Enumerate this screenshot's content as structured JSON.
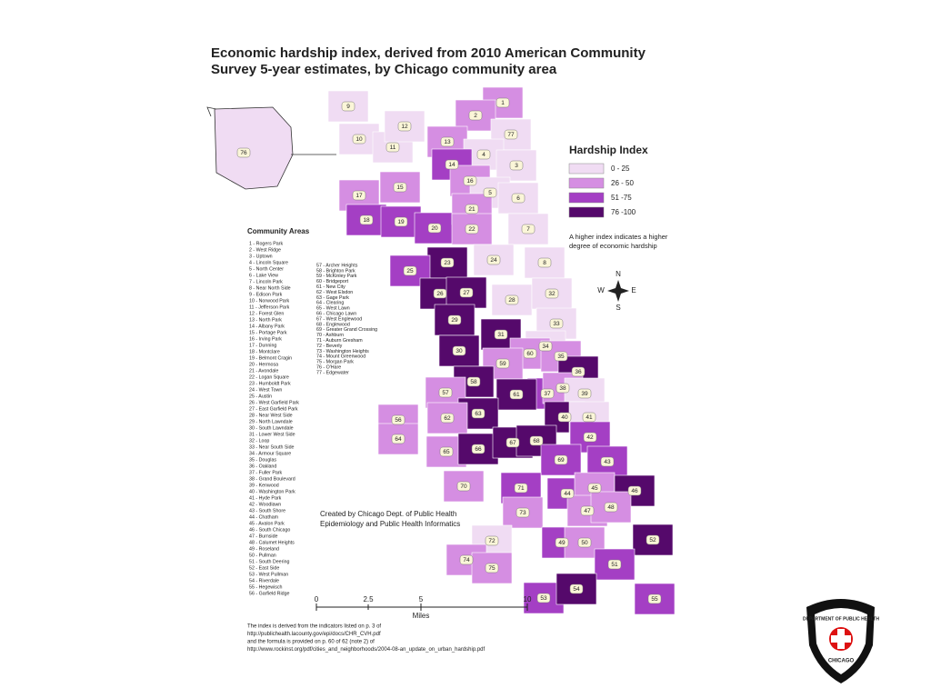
{
  "title": [
    "Economic hardship index, derived from 2010 American Community",
    "Survey 5-year estimates, by Chicago community area"
  ],
  "legend": {
    "title": "Hardship Index",
    "items": [
      {
        "label": "0 - 25",
        "color": "#f0dcf3"
      },
      {
        "label": "26 - 50",
        "color": "#d58ee2"
      },
      {
        "label": "51 -75",
        "color": "#a43fc4"
      },
      {
        "label": "76 -100",
        "color": "#55096b"
      }
    ],
    "note": [
      "A higher index indicates a higher",
      "degree of economic hardship"
    ]
  },
  "community_areas": {
    "title": "Community Areas",
    "column_1": [
      "1 - Rogers Park",
      "2 - West Ridge",
      "3 - Uptown",
      "4 - Lincoln Square",
      "5 - North Center",
      "6 - Lake View",
      "7 - Lincoln Park",
      "8 - Near North Side",
      "9 - Edison Park",
      "10 - Norwood Park",
      "11 - Jefferson Park",
      "12 - Forest Glen",
      "13 - North Park",
      "14 - Albany Park",
      "15 - Portage Park",
      "16 - Irving Park",
      "17 - Dunning",
      "18 - Montclare",
      "19 - Belmont Cragin",
      "20 - Hermosa",
      "21 - Avondale",
      "22 - Logan Square",
      "23 - Humboldt Park",
      "24 - West Town",
      "25 - Austin",
      "26 - West Garfield Park",
      "27 - East Garfield Park",
      "28 - Near West Side",
      "29 - North Lawndale",
      "30 - South Lawndale",
      "31 - Lower West Side",
      "32 - Loop",
      "33 - Near South Side",
      "34 - Armour Square",
      "35 - Douglas",
      "36 - Oakland",
      "37 - Fuller Park",
      "38 - Grand Boulevard",
      "39 - Kenwood",
      "40 - Washington Park",
      "41 - Hyde Park",
      "42 - Woodlawn",
      "43 - South Shore",
      "44 - Chatham",
      "45 - Avalon Park",
      "46 - South Chicago",
      "47 - Burnside",
      "48 - Calumet Heights",
      "49 - Roseland",
      "50 - Pullman",
      "51 - South Deering",
      "52 - East Side",
      "53 - West Pullman",
      "54 - Riverdale",
      "55 - Hegewisch",
      "56 - Garfield Ridge"
    ],
    "column_2": [
      "57 - Archer Heights",
      "58 - Brighton Park",
      "59 - McKinley Park",
      "60 - Bridgeport",
      "61 - New City",
      "62 - West Elsdon",
      "63 - Gage Park",
      "64 - Clearing",
      "65 - West Lawn",
      "66 - Chicago Lawn",
      "67 - West Englewood",
      "68 - Englewood",
      "69 - Greater Grand Crossing",
      "70 - Ashburn",
      "71 - Auburn Gresham",
      "72 - Beverly",
      "73 - Washington Heights",
      "74 - Mount Greenwood",
      "75 - Morgan Park",
      "76 - O'Hare",
      "77 - Edgewater"
    ]
  },
  "map_labels": [
    "76",
    "9",
    "10",
    "11",
    "12",
    "1",
    "2",
    "13",
    "77",
    "4",
    "3",
    "14",
    "16",
    "5",
    "6",
    "15",
    "17",
    "18",
    "19",
    "20",
    "21",
    "22",
    "7",
    "23",
    "24",
    "8",
    "25",
    "26",
    "27",
    "28",
    "32",
    "29",
    "31",
    "33",
    "30",
    "34",
    "60",
    "59",
    "35",
    "36",
    "58",
    "37",
    "38",
    "39",
    "57",
    "61",
    "63",
    "62",
    "40",
    "41",
    "56",
    "42",
    "64",
    "65",
    "66",
    "67",
    "68",
    "69",
    "43",
    "70",
    "71",
    "44",
    "45",
    "46",
    "47",
    "48",
    "73",
    "72",
    "49",
    "50",
    "52",
    "74",
    "75",
    "51",
    "53",
    "54",
    "55"
  ],
  "credit": [
    "Created by Chicago Dept. of Public Health",
    "Epidemiology and Public Health Informatics"
  ],
  "compass": {
    "north": "N",
    "south": "S",
    "east": "E",
    "west": "W"
  },
  "scale_bar": {
    "labels": [
      "0",
      "2.5",
      "5",
      "10"
    ],
    "unit": "Miles"
  },
  "footnote": [
    "The index is derived from the indicators listed on p. 3 of",
    "http://publichealth.lacounty.gov/epi/docs/CHR_CVH.pdf",
    "and the formula is provided on p. 60 of 62 (note 2) of",
    "http://www.rockinst.org/pdf/cities_and_neighborhoods/2004-08-an_update_on_urban_hardship.pdf"
  ],
  "logo": {
    "top": "DEPARTMENT OF PUBLIC HEALTH",
    "bottom": "CHICAGO"
  }
}
